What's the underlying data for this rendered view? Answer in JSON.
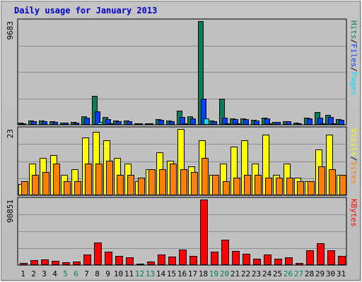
{
  "title": "Daily usage for January 2013",
  "colors": {
    "background": "#c0c0c0",
    "plot_background": "#c0c0c0",
    "gridline": "#8c8c8c",
    "title": "#0000cc",
    "hits": "#00805c",
    "files": "#0040ff",
    "pages": "#00e0ff",
    "visits": "#ffff00",
    "sites": "#ff8000",
    "kbytes": "#ff0000",
    "weekend_day": "#00805c",
    "weekday_day": "#000000"
  },
  "chart_data": {
    "type": "bar",
    "categories": [
      "1",
      "2",
      "3",
      "4",
      "5",
      "6",
      "7",
      "8",
      "9",
      "10",
      "11",
      "12",
      "13",
      "14",
      "15",
      "16",
      "17",
      "18",
      "19",
      "20",
      "21",
      "22",
      "23",
      "24",
      "25",
      "26",
      "27",
      "28",
      "29",
      "30",
      "31"
    ],
    "weekend_days": [
      "5",
      "6",
      "12",
      "13",
      "19",
      "20",
      "26",
      "27"
    ],
    "panels": [
      {
        "name": "hits-panel",
        "max_label": "9683",
        "ylim": [
          0,
          9683
        ],
        "legend": [
          {
            "text": "Hits",
            "color_key": "hits"
          },
          {
            "text": "Files",
            "color_key": "files"
          },
          {
            "text": "Pages",
            "color_key": "pages"
          }
        ],
        "sep": "/",
        "series": [
          {
            "name": "Hits",
            "color_key": "hits",
            "values": [
              180,
              400,
              420,
              310,
              210,
              240,
              820,
              2700,
              700,
              420,
              370,
              120,
              160,
              510,
              370,
              1290,
              780,
              9683,
              390,
              2410,
              610,
              590,
              440,
              680,
              290,
              350,
              180,
              650,
              1170,
              890,
              540
            ]
          },
          {
            "name": "Files",
            "color_key": "files",
            "values": [
              150,
              330,
              360,
              280,
              180,
              210,
              660,
              1270,
              550,
              360,
              330,
              100,
              130,
              430,
              330,
              730,
              580,
              2440,
              340,
              630,
              540,
              500,
              390,
              600,
              260,
              320,
              150,
              570,
              640,
              700,
              470
            ]
          },
          {
            "name": "Pages",
            "color_key": "pages",
            "values": [
              40,
              70,
              80,
              50,
              40,
              40,
              90,
              280,
              110,
              80,
              70,
              20,
              30,
              80,
              70,
              110,
              80,
              600,
              70,
              130,
              100,
              90,
              70,
              100,
              50,
              60,
              30,
              90,
              110,
              110,
              80
            ]
          }
        ]
      },
      {
        "name": "visits-panel",
        "max_label": "23",
        "ylim": [
          0,
          23
        ],
        "legend": [
          {
            "text": "Visits",
            "color_key": "visits"
          },
          {
            "text": "Sites",
            "color_key": "sites"
          }
        ],
        "sep": "/",
        "series": [
          {
            "name": "Visits",
            "color_key": "visits",
            "values": [
              4,
              11,
              13,
              14,
              7,
              9,
              20,
              22,
              19,
              13,
              11,
              5,
              9,
              15,
              12,
              23,
              10,
              19,
              7,
              11,
              17,
              19,
              11,
              21,
              7,
              11,
              6,
              5,
              16,
              21,
              7
            ]
          },
          {
            "name": "Sites",
            "color_key": "sites",
            "values": [
              5,
              7,
              8,
              11,
              5,
              5,
              11,
              11,
              12,
              7,
              7,
              6,
              9,
              9,
              11,
              9,
              8,
              13,
              7,
              5,
              6,
              7,
              7,
              6,
              6,
              6,
              5,
              5,
              10,
              9,
              7
            ]
          }
        ]
      },
      {
        "name": "kbytes-panel",
        "max_label": "90851",
        "ylim": [
          0,
          90851
        ],
        "legend": [
          {
            "text": "KBytes",
            "color_key": "kbytes"
          }
        ],
        "sep": "",
        "series": [
          {
            "name": "KBytes",
            "color_key": "kbytes",
            "values": [
              3000,
              6800,
              8300,
              6300,
              4300,
              5000,
              14700,
              31600,
              18600,
              12900,
              10500,
              1900,
              4800,
              14600,
              11800,
              21700,
              12600,
              90851,
              18500,
              35100,
              19700,
              16000,
              9200,
              14500,
              9000,
              11200,
              2800,
              20300,
              29800,
              20500,
              12600
            ]
          }
        ]
      }
    ]
  }
}
